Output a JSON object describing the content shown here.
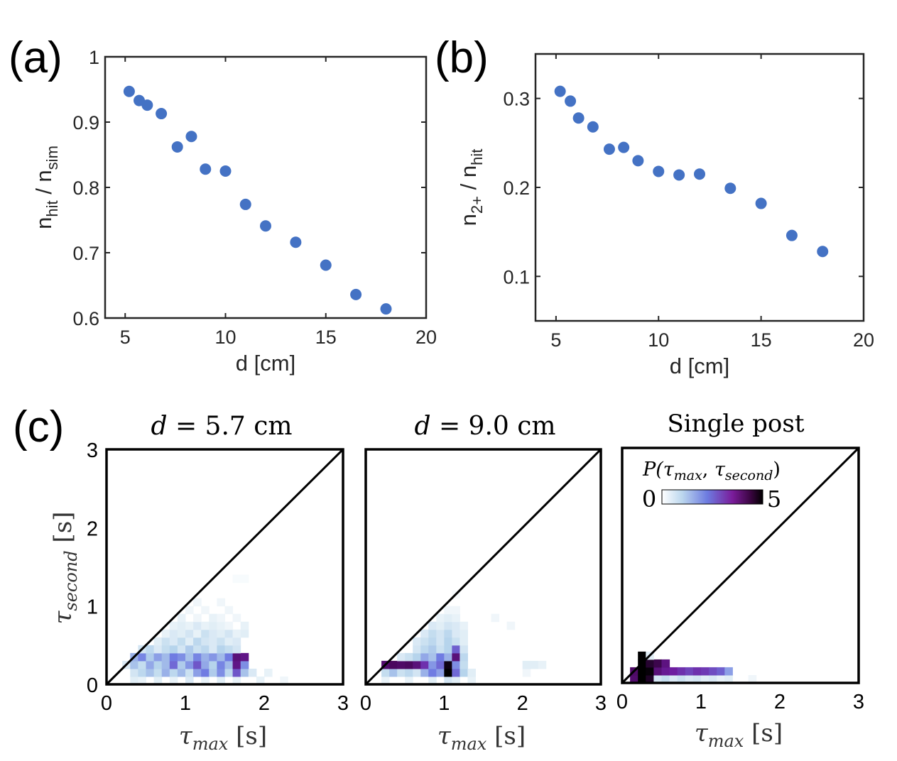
{
  "panels": {
    "a": {
      "label": "(a)"
    },
    "b": {
      "label": "(b)"
    },
    "c": {
      "label": "(c)"
    }
  },
  "colors": {
    "marker": "#4472c4",
    "axis": "#262626",
    "heat_low": "#ffffff",
    "heat_mid": "#6a5acd",
    "heat_high": "#000000"
  },
  "chart_data": [
    {
      "id": "a",
      "type": "scatter",
      "xlabel": "d [cm]",
      "ylabel_main": "n",
      "ylabel_sub1": "hit",
      "ylabel_sep": " / n",
      "ylabel_sub2": "sim",
      "xlim": [
        4,
        20
      ],
      "ylim": [
        0.6,
        1.0
      ],
      "xticks": [
        5,
        10,
        15,
        20
      ],
      "yticks": [
        0.6,
        0.7,
        0.8,
        0.9,
        1.0
      ],
      "ytick_labels": [
        "0.6",
        "0.7",
        "0.8",
        "0.9",
        "1"
      ],
      "x": [
        5.2,
        5.7,
        6.1,
        6.8,
        7.6,
        8.3,
        9.0,
        10.0,
        11.0,
        12.0,
        13.5,
        15.0,
        16.5,
        18.0
      ],
      "y": [
        0.947,
        0.933,
        0.926,
        0.913,
        0.862,
        0.878,
        0.828,
        0.825,
        0.774,
        0.741,
        0.716,
        0.681,
        0.636,
        0.614
      ]
    },
    {
      "id": "b",
      "type": "scatter",
      "xlabel": "d [cm]",
      "ylabel_main": "n",
      "ylabel_sub1": "2+",
      "ylabel_sep": " / n",
      "ylabel_sub2": "hit",
      "xlim": [
        4,
        20
      ],
      "ylim": [
        0.05,
        0.35
      ],
      "xticks": [
        5,
        10,
        15,
        20
      ],
      "yticks": [
        0.1,
        0.2,
        0.3
      ],
      "ytick_labels": [
        "0.1",
        "0.2",
        "0.3"
      ],
      "x": [
        5.2,
        5.7,
        6.1,
        6.8,
        7.6,
        8.3,
        9.0,
        10.0,
        11.0,
        12.0,
        13.5,
        15.0,
        16.5,
        18.0
      ],
      "y": [
        0.308,
        0.297,
        0.278,
        0.268,
        0.243,
        0.245,
        0.23,
        0.218,
        0.214,
        0.215,
        0.199,
        0.182,
        0.146,
        0.128
      ]
    },
    {
      "id": "c1",
      "type": "heatmap",
      "title_var": "d",
      "title_rest": " = 5.7 cm",
      "xlabel_sym": "τ",
      "xlabel_sub": "max",
      "xlabel_unit": " [s]",
      "ylabel_sym": "τ",
      "ylabel_sub": "second",
      "ylabel_unit": " [s]",
      "xlim": [
        0,
        3
      ],
      "ylim": [
        0,
        3
      ],
      "xticks": [
        0,
        1,
        2,
        3
      ],
      "yticks": [
        0,
        1,
        2,
        3
      ],
      "bin": 0.1,
      "cells": [
        [
          0.3,
          0.0,
          0.4
        ],
        [
          0.4,
          0.0,
          0.3
        ],
        [
          0.6,
          0.0,
          0.4
        ],
        [
          0.8,
          0.0,
          0.3
        ],
        [
          1.0,
          0.0,
          0.5
        ],
        [
          1.2,
          0.0,
          0.3
        ],
        [
          1.4,
          0.0,
          0.4
        ],
        [
          1.6,
          0.0,
          0.3
        ],
        [
          1.9,
          0.0,
          0.3
        ],
        [
          2.2,
          0.0,
          0.2
        ],
        [
          0.3,
          0.1,
          0.6
        ],
        [
          0.4,
          0.1,
          0.9
        ],
        [
          0.5,
          0.1,
          1.2
        ],
        [
          0.6,
          0.1,
          0.8
        ],
        [
          0.7,
          0.1,
          1.4
        ],
        [
          0.8,
          0.1,
          0.9
        ],
        [
          0.9,
          0.1,
          1.3
        ],
        [
          1.0,
          0.1,
          0.7
        ],
        [
          1.1,
          0.1,
          1.6
        ],
        [
          1.2,
          0.1,
          2.0
        ],
        [
          1.3,
          0.1,
          1.1
        ],
        [
          1.4,
          0.1,
          1.8
        ],
        [
          1.5,
          0.1,
          0.9
        ],
        [
          1.6,
          0.1,
          2.4
        ],
        [
          1.7,
          0.1,
          1.2
        ],
        [
          1.8,
          0.1,
          0.5
        ],
        [
          2.0,
          0.1,
          0.3
        ],
        [
          0.2,
          0.2,
          0.5
        ],
        [
          0.3,
          0.2,
          1.2
        ],
        [
          0.4,
          0.2,
          0.8
        ],
        [
          0.5,
          0.2,
          1.5
        ],
        [
          0.6,
          0.2,
          1.0
        ],
        [
          0.7,
          0.2,
          1.3
        ],
        [
          0.8,
          0.2,
          2.2
        ],
        [
          0.9,
          0.2,
          1.1
        ],
        [
          1.0,
          0.2,
          1.7
        ],
        [
          1.1,
          0.2,
          2.4
        ],
        [
          1.2,
          0.2,
          1.5
        ],
        [
          1.3,
          0.2,
          1.0
        ],
        [
          1.4,
          0.2,
          1.9
        ],
        [
          1.5,
          0.2,
          1.3
        ],
        [
          1.6,
          0.2,
          3.4
        ],
        [
          1.7,
          0.2,
          1.8
        ],
        [
          0.3,
          0.3,
          1.4
        ],
        [
          0.4,
          0.3,
          1.9
        ],
        [
          0.5,
          0.3,
          1.1
        ],
        [
          0.6,
          0.3,
          1.6
        ],
        [
          0.7,
          0.3,
          1.3
        ],
        [
          0.8,
          0.3,
          2.0
        ],
        [
          0.9,
          0.3,
          1.8
        ],
        [
          1.0,
          0.3,
          1.2
        ],
        [
          1.1,
          0.3,
          1.9
        ],
        [
          1.2,
          0.3,
          1.4
        ],
        [
          1.3,
          0.3,
          1.7
        ],
        [
          1.4,
          0.3,
          1.3
        ],
        [
          1.5,
          0.3,
          2.0
        ],
        [
          1.6,
          0.3,
          3.6
        ],
        [
          1.7,
          0.3,
          3.4
        ],
        [
          0.4,
          0.4,
          0.6
        ],
        [
          0.5,
          0.4,
          0.9
        ],
        [
          0.6,
          0.4,
          0.5
        ],
        [
          0.7,
          0.4,
          0.8
        ],
        [
          0.8,
          0.4,
          1.0
        ],
        [
          0.9,
          0.4,
          0.6
        ],
        [
          1.0,
          0.4,
          1.1
        ],
        [
          1.1,
          0.4,
          0.7
        ],
        [
          1.2,
          0.4,
          0.9
        ],
        [
          1.3,
          0.4,
          0.5
        ],
        [
          1.4,
          0.4,
          1.0
        ],
        [
          1.5,
          0.4,
          0.8
        ],
        [
          1.6,
          0.4,
          0.6
        ],
        [
          0.6,
          0.5,
          0.4
        ],
        [
          0.7,
          0.5,
          0.7
        ],
        [
          0.8,
          0.5,
          0.5
        ],
        [
          0.9,
          0.5,
          0.8
        ],
        [
          1.0,
          0.5,
          0.4
        ],
        [
          1.1,
          0.5,
          0.9
        ],
        [
          1.2,
          0.5,
          0.6
        ],
        [
          1.3,
          0.5,
          0.5
        ],
        [
          1.4,
          0.5,
          0.7
        ],
        [
          1.5,
          0.5,
          0.4
        ],
        [
          1.6,
          0.5,
          0.5
        ],
        [
          0.7,
          0.6,
          0.3
        ],
        [
          0.8,
          0.6,
          0.5
        ],
        [
          0.9,
          0.6,
          0.4
        ],
        [
          1.0,
          0.6,
          0.6
        ],
        [
          1.1,
          0.6,
          0.3
        ],
        [
          1.2,
          0.6,
          0.7
        ],
        [
          1.3,
          0.6,
          0.5
        ],
        [
          1.4,
          0.6,
          0.4
        ],
        [
          1.5,
          0.6,
          0.6
        ],
        [
          1.6,
          0.6,
          0.3
        ],
        [
          1.7,
          0.6,
          0.4
        ],
        [
          0.8,
          0.7,
          0.3
        ],
        [
          0.9,
          0.7,
          0.4
        ],
        [
          1.0,
          0.7,
          0.3
        ],
        [
          1.1,
          0.7,
          0.5
        ],
        [
          1.2,
          0.7,
          0.3
        ],
        [
          1.3,
          0.7,
          0.4
        ],
        [
          1.4,
          0.7,
          0.3
        ],
        [
          1.5,
          0.7,
          0.2
        ],
        [
          1.7,
          0.7,
          0.3
        ],
        [
          0.9,
          0.8,
          0.3
        ],
        [
          1.1,
          0.8,
          0.2
        ],
        [
          1.3,
          0.8,
          0.3
        ],
        [
          1.4,
          0.8,
          0.2
        ],
        [
          1.6,
          0.8,
          0.2
        ],
        [
          1.0,
          0.9,
          0.2
        ],
        [
          1.2,
          0.9,
          0.2
        ],
        [
          1.5,
          0.9,
          0.2
        ],
        [
          1.1,
          1.0,
          0.2
        ],
        [
          1.4,
          1.0,
          0.2
        ],
        [
          1.6,
          1.3,
          0.1
        ],
        [
          1.7,
          1.3,
          0.1
        ]
      ]
    },
    {
      "id": "c2",
      "type": "heatmap",
      "title_var": "d",
      "title_rest": " = 9.0 cm",
      "xlabel_sym": "τ",
      "xlabel_sub": "max",
      "xlabel_unit": " [s]",
      "xlim": [
        0,
        3
      ],
      "ylim": [
        0,
        3
      ],
      "xticks": [
        0,
        1,
        2,
        3
      ],
      "bin": 0.1,
      "cells": [
        [
          0.2,
          0.0,
          0.3
        ],
        [
          0.5,
          0.0,
          0.3
        ],
        [
          0.8,
          0.0,
          0.4
        ],
        [
          1.0,
          0.0,
          0.6
        ],
        [
          1.1,
          0.0,
          0.4
        ],
        [
          1.3,
          0.0,
          0.3
        ],
        [
          0.2,
          0.1,
          0.8
        ],
        [
          0.3,
          0.1,
          1.2
        ],
        [
          0.4,
          0.1,
          0.7
        ],
        [
          0.5,
          0.1,
          0.9
        ],
        [
          0.6,
          0.1,
          0.6
        ],
        [
          0.7,
          0.1,
          1.4
        ],
        [
          0.8,
          0.1,
          2.0
        ],
        [
          0.9,
          0.1,
          1.6
        ],
        [
          1.0,
          0.1,
          5.0
        ],
        [
          1.1,
          0.1,
          2.2
        ],
        [
          1.2,
          0.1,
          1.0
        ],
        [
          1.3,
          0.1,
          0.4
        ],
        [
          2.0,
          0.1,
          0.2
        ],
        [
          0.2,
          0.2,
          3.8
        ],
        [
          0.3,
          0.2,
          4.0
        ],
        [
          0.4,
          0.2,
          3.9
        ],
        [
          0.5,
          0.2,
          4.0
        ],
        [
          0.6,
          0.2,
          3.6
        ],
        [
          0.7,
          0.2,
          2.8
        ],
        [
          0.8,
          0.2,
          1.7
        ],
        [
          0.9,
          0.2,
          2.2
        ],
        [
          1.0,
          0.2,
          4.8
        ],
        [
          1.1,
          0.2,
          1.8
        ],
        [
          1.2,
          0.2,
          0.8
        ],
        [
          2.0,
          0.2,
          0.4
        ],
        [
          2.1,
          0.2,
          0.4
        ],
        [
          2.2,
          0.2,
          0.3
        ],
        [
          0.4,
          0.3,
          0.5
        ],
        [
          0.5,
          0.3,
          0.7
        ],
        [
          0.6,
          0.3,
          1.0
        ],
        [
          0.7,
          0.3,
          1.5
        ],
        [
          0.8,
          0.3,
          1.2
        ],
        [
          0.9,
          0.3,
          2.0
        ],
        [
          1.0,
          0.3,
          1.4
        ],
        [
          1.1,
          0.3,
          3.6
        ],
        [
          1.2,
          0.3,
          0.9
        ],
        [
          0.6,
          0.4,
          0.6
        ],
        [
          0.7,
          0.4,
          0.9
        ],
        [
          0.8,
          0.4,
          1.1
        ],
        [
          0.9,
          0.4,
          0.7
        ],
        [
          1.0,
          0.4,
          1.0
        ],
        [
          1.1,
          0.4,
          2.3
        ],
        [
          1.2,
          0.4,
          0.6
        ],
        [
          0.6,
          0.5,
          0.5
        ],
        [
          0.7,
          0.5,
          0.7
        ],
        [
          0.8,
          0.5,
          0.9
        ],
        [
          0.9,
          0.5,
          0.6
        ],
        [
          1.0,
          0.5,
          1.0
        ],
        [
          1.1,
          0.5,
          0.7
        ],
        [
          1.2,
          0.5,
          0.4
        ],
        [
          0.7,
          0.6,
          0.5
        ],
        [
          0.8,
          0.6,
          0.8
        ],
        [
          0.9,
          0.6,
          0.6
        ],
        [
          1.0,
          0.6,
          0.9
        ],
        [
          1.1,
          0.6,
          0.5
        ],
        [
          1.2,
          0.6,
          0.4
        ],
        [
          0.8,
          0.7,
          0.5
        ],
        [
          0.9,
          0.7,
          0.4
        ],
        [
          1.0,
          0.7,
          0.6
        ],
        [
          1.1,
          0.7,
          0.5
        ],
        [
          1.2,
          0.7,
          0.3
        ],
        [
          0.9,
          0.8,
          0.3
        ],
        [
          1.0,
          0.8,
          0.4
        ],
        [
          1.1,
          0.8,
          0.3
        ],
        [
          1.6,
          0.8,
          0.2
        ],
        [
          1.8,
          0.7,
          0.2
        ],
        [
          1.0,
          0.9,
          0.2
        ],
        [
          1.1,
          0.9,
          0.2
        ],
        [
          1.1,
          1.1,
          0.1
        ]
      ]
    },
    {
      "id": "c3",
      "type": "heatmap",
      "title": "Single post",
      "xlabel_sym": "τ",
      "xlabel_sub": "max",
      "xlabel_unit": " [s]",
      "xlim": [
        0,
        3
      ],
      "ylim": [
        0,
        3
      ],
      "xticks": [
        0,
        1,
        2,
        3
      ],
      "bin": 0.1,
      "colorbar": {
        "label_prefix": "P(",
        "label_sym1": "τ",
        "label_sub1": "max",
        "label_comma": ", ",
        "label_sym2": "τ",
        "label_sub2": "second",
        "label_suffix": ")",
        "min": 0,
        "max": 5,
        "min_label": "0",
        "max_label": "5"
      },
      "cells": [
        [
          0.1,
          0.0,
          3.8
        ],
        [
          0.2,
          0.0,
          5.0
        ],
        [
          0.3,
          0.0,
          4.6
        ],
        [
          0.4,
          0.0,
          0.6
        ],
        [
          0.5,
          0.0,
          0.8
        ],
        [
          0.6,
          0.0,
          0.5
        ],
        [
          0.7,
          0.0,
          0.7
        ],
        [
          0.8,
          0.0,
          0.5
        ],
        [
          0.9,
          0.0,
          0.6
        ],
        [
          1.0,
          0.0,
          0.4
        ],
        [
          1.1,
          0.0,
          0.5
        ],
        [
          1.2,
          0.0,
          0.3
        ],
        [
          1.3,
          0.0,
          0.4
        ],
        [
          1.6,
          0.0,
          0.2
        ],
        [
          0.1,
          0.1,
          3.9
        ],
        [
          0.2,
          0.1,
          5.0
        ],
        [
          0.3,
          0.1,
          4.9
        ],
        [
          0.4,
          0.1,
          3.6
        ],
        [
          0.5,
          0.1,
          3.2
        ],
        [
          0.6,
          0.1,
          3.0
        ],
        [
          0.7,
          0.1,
          2.8
        ],
        [
          0.8,
          0.1,
          2.6
        ],
        [
          0.9,
          0.1,
          2.8
        ],
        [
          1.0,
          0.1,
          2.7
        ],
        [
          1.1,
          0.1,
          2.5
        ],
        [
          1.2,
          0.1,
          2.3
        ],
        [
          1.3,
          0.1,
          1.6
        ],
        [
          0.2,
          0.2,
          5.0
        ],
        [
          0.3,
          0.2,
          4.5
        ],
        [
          0.4,
          0.2,
          4.2
        ],
        [
          0.5,
          0.2,
          3.5
        ],
        [
          0.2,
          0.3,
          5.0
        ],
        [
          0.3,
          0.3,
          0.4
        ]
      ]
    }
  ]
}
